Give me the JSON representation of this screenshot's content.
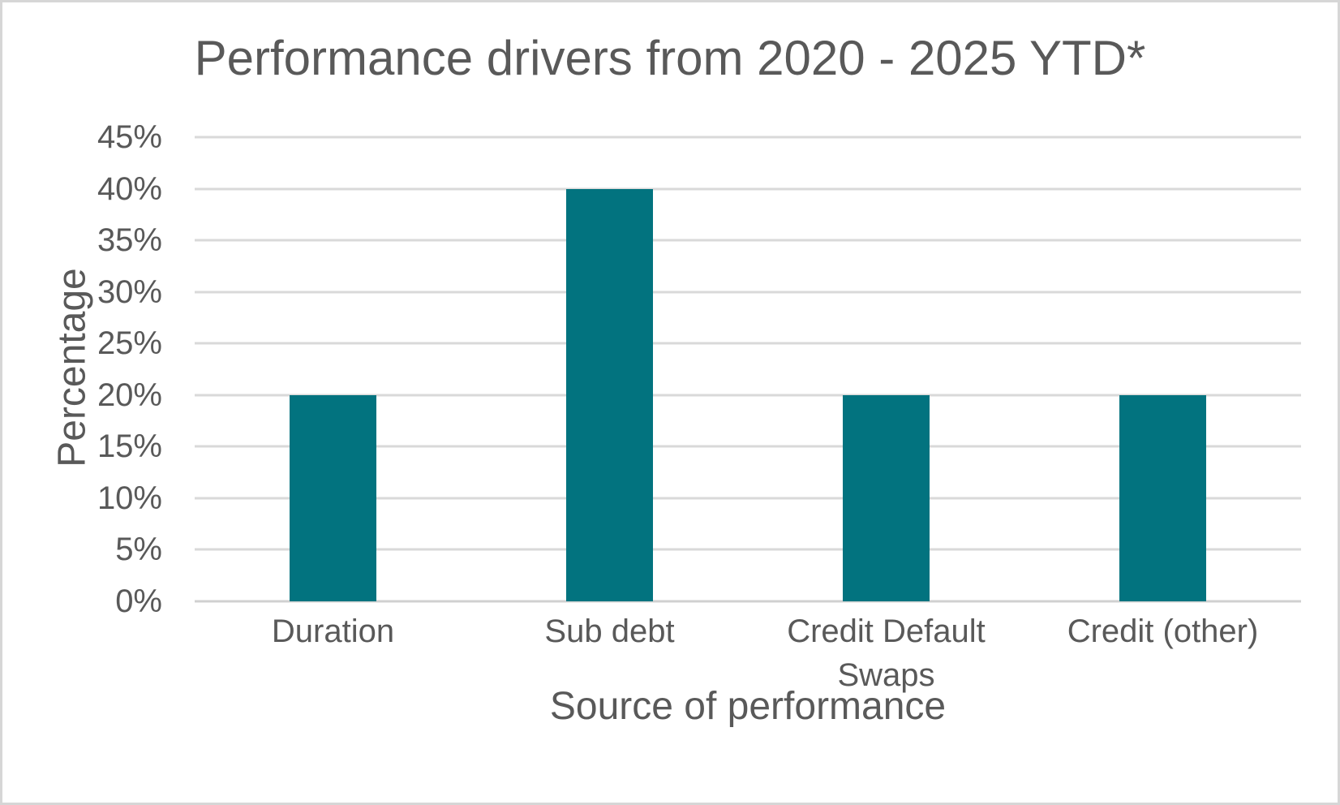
{
  "window": {
    "background": "#ffffff",
    "border_color": "#d6d6d6"
  },
  "chart_data": {
    "type": "bar",
    "title": "Performance drivers from 2020 - 2025 YTD*",
    "xlabel": "Source of performance",
    "ylabel": "Percentage",
    "categories": [
      "Duration",
      "Sub debt",
      "Credit Default Swaps",
      "Credit (other)"
    ],
    "values": [
      20,
      40,
      20,
      20
    ],
    "value_unit": "%",
    "ylim": [
      0,
      45
    ],
    "ytick_labels": [
      "0%",
      "5%",
      "10%",
      "15%",
      "20%",
      "25%",
      "30%",
      "35%",
      "40%",
      "45%"
    ],
    "grid": true,
    "legend": false,
    "bar_color": "#02737F",
    "gridline_color": "#d9d9d9",
    "axis_line_color": "#d0d0d0",
    "text_color": "#595959"
  }
}
